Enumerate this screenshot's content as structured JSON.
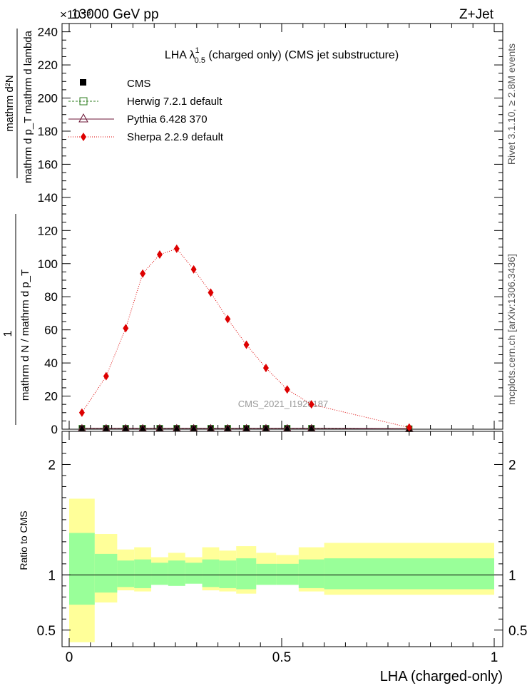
{
  "header": {
    "left": "13000 GeV pp",
    "right": "Z+Jet",
    "exponent": "×10⁻³"
  },
  "side_labels": {
    "rivet": "Rivet 3.1.10, ≥ 2.8M events",
    "mcplots": "mcplots.cern.ch [arXiv:1306.3436]"
  },
  "analysis_id": "CMS_2021_I1920187",
  "colors": {
    "cms": "#000000",
    "herwig": "#2e7d1f",
    "pythia": "#6b1535",
    "sherpa": "#dd0000",
    "band_inner": "#99ff99",
    "band_outer": "#ffff99"
  },
  "chart_data": [
    {
      "type": "line",
      "title": "LHA λ¹₀.₅ (charged only) (CMS jet substructure)",
      "title_main": "LHA λ",
      "title_sup": "1",
      "title_sub": "0.5",
      "title_rest": " (charged only) (CMS jet substructure)",
      "ylabel_numerator": "1",
      "ylabel_denominator": "mathrm d N / mathrm d p_T",
      "ylabel_right_num": "mathrm d²N",
      "ylabel_right_den": "mathrm d p_T mathrm d lambda",
      "xlim": [
        0,
        1
      ],
      "ylim": [
        0,
        245
      ],
      "y_scale": "1e-3",
      "y_ticks": [
        0,
        20,
        40,
        60,
        80,
        100,
        120,
        140,
        160,
        180,
        200,
        220,
        240
      ],
      "legend_position": "top-left",
      "x": [
        0.03,
        0.087,
        0.133,
        0.173,
        0.213,
        0.253,
        0.293,
        0.333,
        0.373,
        0.417,
        0.463,
        0.513,
        0.57,
        0.8
      ],
      "series": [
        {
          "name": "CMS",
          "values": [
            0.6,
            0.6,
            0.6,
            0.6,
            0.6,
            0.6,
            0.6,
            0.6,
            0.6,
            0.6,
            0.6,
            0.6,
            0.6,
            0.3
          ]
        },
        {
          "name": "Herwig 7.2.1 default",
          "values": [
            0.6,
            0.6,
            0.6,
            0.6,
            0.6,
            0.6,
            0.6,
            0.6,
            0.6,
            0.6,
            0.6,
            0.6,
            0.6,
            0.3
          ]
        },
        {
          "name": "Pythia 6.428 370",
          "values": [
            0.6,
            0.6,
            0.6,
            0.6,
            0.6,
            0.6,
            0.6,
            0.6,
            0.6,
            0.6,
            0.6,
            0.6,
            0.6,
            0.3
          ]
        },
        {
          "name": "Sherpa 2.2.9 default",
          "values": [
            10,
            32,
            61,
            94,
            105.5,
            109,
            96.5,
            82.5,
            66.5,
            51,
            37,
            24,
            15,
            1
          ]
        }
      ]
    },
    {
      "type": "area",
      "ylabel": "Ratio to CMS",
      "xlabel": "LHA (charged-only)",
      "xlim": [
        0,
        1
      ],
      "ylim": [
        0.35,
        2.3
      ],
      "y_ticks": [
        0.5,
        1,
        2
      ],
      "x_ticks": [
        0,
        0.5,
        1
      ],
      "x_tick_labels": [
        "0",
        "0.5",
        "1"
      ],
      "bin_edges": [
        0,
        0.06,
        0.113,
        0.153,
        0.193,
        0.233,
        0.273,
        0.313,
        0.353,
        0.393,
        0.44,
        0.487,
        0.54,
        0.6,
        1
      ],
      "bands": {
        "inner_upper": [
          1.38,
          1.19,
          1.13,
          1.14,
          1.11,
          1.13,
          1.11,
          1.14,
          1.13,
          1.15,
          1.1,
          1.1,
          1.14,
          1.15
        ],
        "inner_lower": [
          0.73,
          0.84,
          0.89,
          0.88,
          0.91,
          0.9,
          0.92,
          0.89,
          0.88,
          0.87,
          0.91,
          0.91,
          0.88,
          0.87
        ],
        "outer_upper": [
          1.69,
          1.37,
          1.23,
          1.25,
          1.16,
          1.2,
          1.16,
          1.25,
          1.22,
          1.26,
          1.2,
          1.18,
          1.25,
          1.29
        ],
        "outer_lower": [
          0.39,
          0.75,
          0.86,
          0.85,
          0.93,
          0.91,
          0.94,
          0.86,
          0.85,
          0.83,
          0.92,
          0.92,
          0.85,
          0.82
        ]
      }
    }
  ]
}
